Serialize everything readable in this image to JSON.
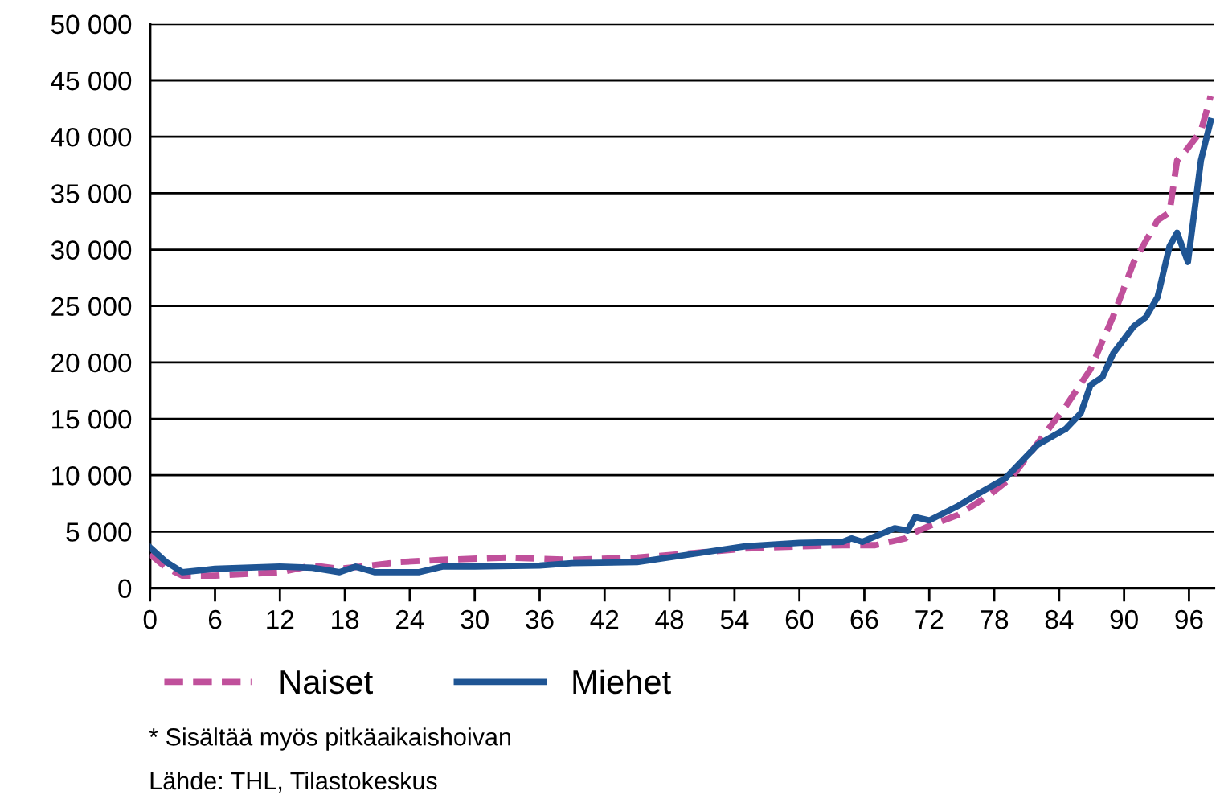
{
  "chart_data": {
    "type": "line",
    "series": [
      {
        "name": "Naiset",
        "color": "#c0509b",
        "line_style": "dashed",
        "x": [
          0,
          1.5,
          3,
          6,
          12,
          15,
          17.5,
          19.5,
          23,
          27,
          33,
          39,
          45,
          49,
          55,
          60,
          64,
          67,
          69.8,
          70.3,
          72,
          74.7,
          77.5,
          79.6,
          84.6,
          86.9,
          89,
          90.9,
          93.1,
          94.2,
          94.9,
          95.9,
          97.1,
          98
        ],
        "values": [
          3000,
          1800,
          1100,
          1100,
          1400,
          2000,
          1700,
          1900,
          2300,
          2500,
          2700,
          2500,
          2700,
          3000,
          3500,
          3700,
          3800,
          3800,
          4400,
          4800,
          5500,
          6500,
          8200,
          9800,
          16100,
          19400,
          24100,
          28900,
          32600,
          33300,
          37900,
          39000,
          40500,
          43600
        ]
      },
      {
        "name": "Miehet",
        "color": "#1f5594",
        "line_style": "solid",
        "x": [
          0,
          1.5,
          3,
          6,
          12,
          15,
          17.5,
          19,
          20.8,
          24.8,
          27,
          30,
          36,
          39,
          45,
          50,
          55,
          60,
          64,
          64.8,
          65.8,
          68.8,
          70,
          70.7,
          72,
          74.7,
          76.6,
          79,
          82,
          84.6,
          86,
          86.9,
          88,
          89,
          90.9,
          92,
          93.1,
          94.2,
          94.9,
          95.9,
          97.1,
          98
        ],
        "values": [
          3600,
          2300,
          1400,
          1700,
          1900,
          1800,
          1400,
          1900,
          1400,
          1400,
          1900,
          1900,
          2000,
          2200,
          2300,
          3000,
          3700,
          4000,
          4100,
          4400,
          4100,
          5300,
          5100,
          6300,
          6000,
          7300,
          8400,
          9700,
          12700,
          14100,
          15500,
          18000,
          18700,
          20800,
          23200,
          24000,
          25800,
          30300,
          31500,
          28900,
          37900,
          41400
        ]
      }
    ],
    "xlim": [
      0,
      98.3
    ],
    "xticks": [
      0,
      6,
      12,
      18,
      24,
      30,
      36,
      42,
      48,
      54,
      60,
      66,
      72,
      78,
      84,
      90,
      96
    ],
    "ylim": [
      0,
      50000
    ],
    "yticks": [
      0,
      {
        "value": 5000,
        "label": "5 000"
      },
      {
        "value": 10000,
        "label": "10 000"
      },
      {
        "value": 15000,
        "label": "15 000"
      },
      {
        "value": 20000,
        "label": "20 000"
      },
      {
        "value": 25000,
        "label": "25 000"
      },
      {
        "value": 30000,
        "label": "30 000"
      },
      {
        "value": 35000,
        "label": "35 000"
      },
      {
        "value": 40000,
        "label": "40 000"
      },
      {
        "value": 45000,
        "label": "45 000"
      },
      {
        "value": 50000,
        "label": "50 000"
      }
    ],
    "grid": "y",
    "legend": "bottom",
    "marker": "none",
    "annotations": [
      "* Sisältää myös pitkäaikaishoivan",
      "Lähde: THL, Tilastokeskus"
    ]
  }
}
